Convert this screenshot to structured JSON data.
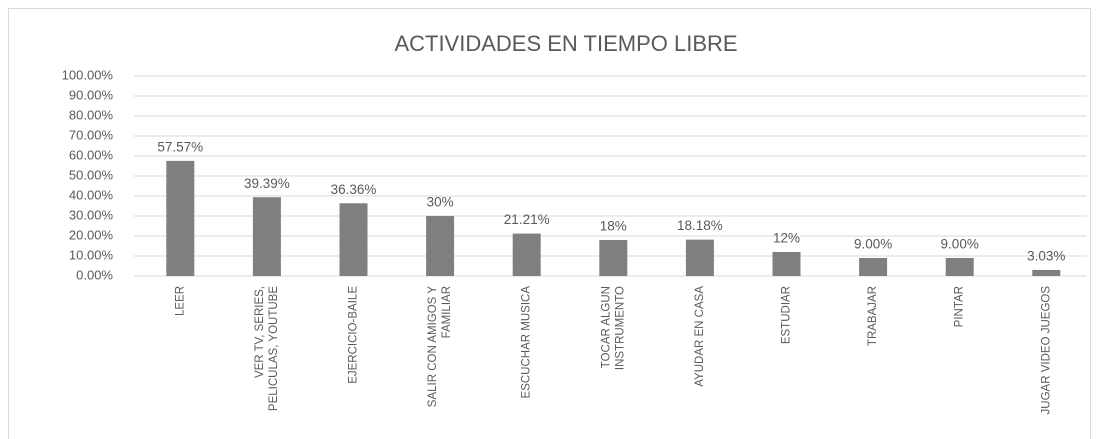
{
  "chart_data": {
    "type": "bar",
    "title": "ACTIVIDADES EN TIEMPO LIBRE",
    "categories": [
      "LEER",
      "VER TV, SERIES,\nPELICULAS, YOUTUBE",
      "EJERCICIO-BAILE",
      "SALIR CON AMIGOS Y\nFAMILIAR",
      "ESCUCHAR MUSICA",
      "TOCAR ALGUN\nINSTRUMENTO",
      "AYUDAR EN CASA",
      "ESTUDIAR",
      "TRABAJAR",
      "PINTAR",
      "JUGAR VIDEO JUEGOS"
    ],
    "values": [
      57.57,
      39.39,
      36.36,
      30,
      21.21,
      18,
      18.18,
      12,
      9,
      9,
      3.03
    ],
    "value_labels": [
      "57.57%",
      "39.39%",
      "36.36%",
      "30%",
      "21.21%",
      "18%",
      "18.18%",
      "12%",
      "9.00%",
      "9.00%",
      "3.03%"
    ],
    "color": "#7f7f7f",
    "ylim": [
      0,
      100
    ],
    "yticks": [
      {
        "value": 0,
        "label": "0.00%"
      },
      {
        "value": 10,
        "label": "10.00%"
      },
      {
        "value": 20,
        "label": "20.00%"
      },
      {
        "value": 30,
        "label": "30.00%"
      },
      {
        "value": 40,
        "label": "40.00%"
      },
      {
        "value": 50,
        "label": "50.00%"
      },
      {
        "value": 60,
        "label": "60.00%"
      },
      {
        "value": 70,
        "label": "70.00%"
      },
      {
        "value": 80,
        "label": "80.00%"
      },
      {
        "value": 90,
        "label": "90.00%"
      },
      {
        "value": 100,
        "label": "100.00%"
      }
    ],
    "grid": true
  }
}
